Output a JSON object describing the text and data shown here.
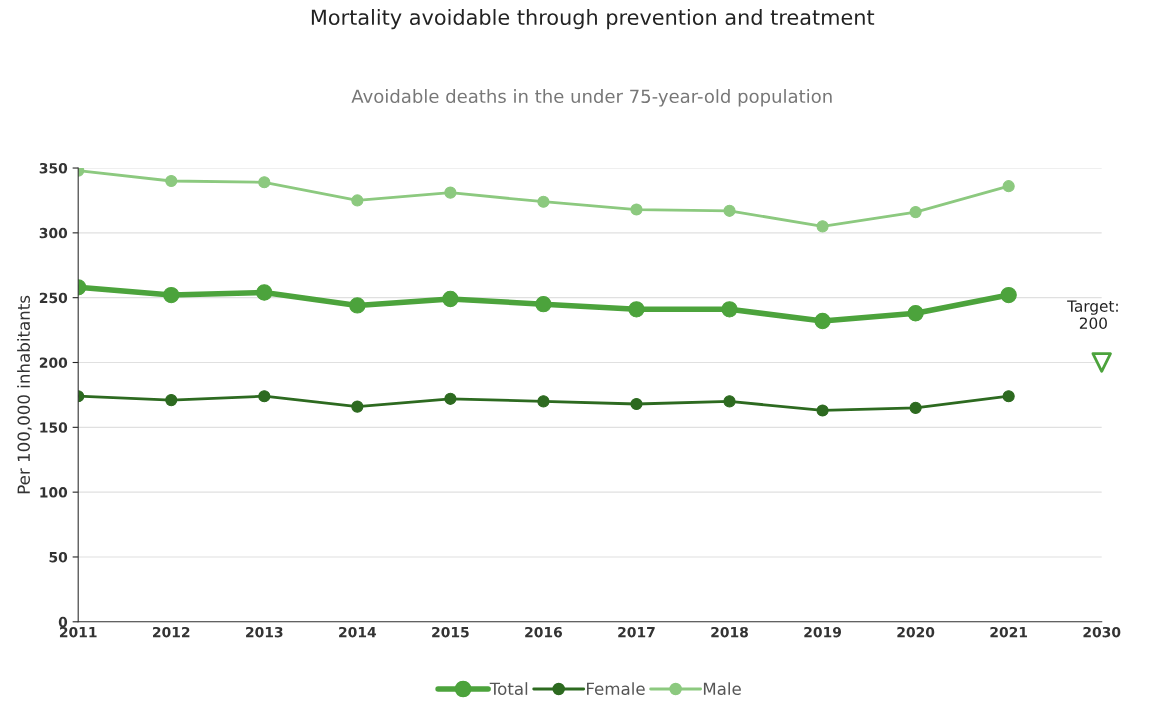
{
  "chart_data": {
    "type": "line",
    "title": "Mortality avoidable through prevention and treatment",
    "subtitle": "Avoidable deaths in the under 75-year-old population",
    "ylabel": "Per 100,000 inhabitants",
    "categories": [
      "2011",
      "2012",
      "2013",
      "2014",
      "2015",
      "2016",
      "2017",
      "2018",
      "2019",
      "2020",
      "2021",
      "2030"
    ],
    "series": [
      {
        "name": "Total",
        "color": "#4ca33c",
        "values": [
          258,
          252,
          254,
          244,
          249,
          245,
          241,
          241,
          232,
          238,
          252,
          null
        ]
      },
      {
        "name": "Female",
        "color": "#2d6a20",
        "values": [
          174,
          171,
          174,
          166,
          172,
          170,
          168,
          170,
          163,
          165,
          174,
          null
        ]
      },
      {
        "name": "Male",
        "color": "#8cc97f",
        "values": [
          348,
          340,
          339,
          325,
          331,
          324,
          318,
          317,
          305,
          316,
          336,
          null
        ]
      },
      {
        "type": "scatter",
        "marker": "triangle",
        "color": "#4ca33c",
        "values": [
          null,
          null,
          null,
          null,
          null,
          null,
          null,
          null,
          null,
          null,
          null,
          200
        ]
      }
    ],
    "annotations": [
      {
        "text": "Target:\n200",
        "x": "2030",
        "y": 200
      }
    ],
    "ylim": [
      0,
      350
    ],
    "yticks": [
      0,
      50,
      100,
      150,
      200,
      250,
      300,
      350
    ],
    "grid": "y",
    "legend": "bottom",
    "marker": "circle",
    "line_style": "solid"
  }
}
